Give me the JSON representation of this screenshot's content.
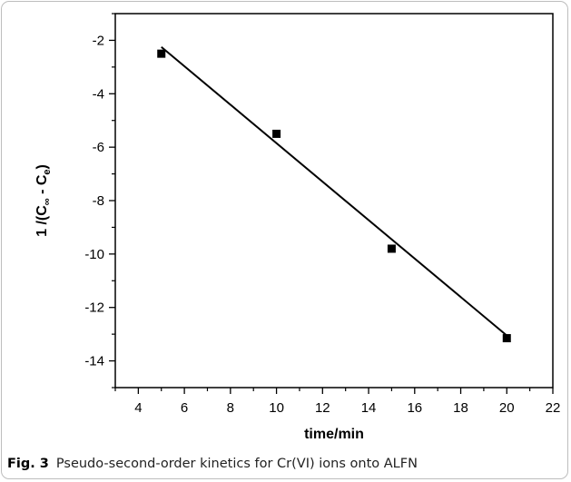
{
  "caption": {
    "label": "Fig. 3",
    "text": "Pseudo-second-order kinetics for Cr(VI) ions onto ALFN"
  },
  "chart_data": {
    "type": "scatter",
    "xlabel": "time/min",
    "ylabel": {
      "main": "1 /(C",
      "sub1": "∞",
      "mid": " - C",
      "sub2": "e",
      "end": ")"
    },
    "xlim": [
      3,
      22
    ],
    "ylim": [
      -15,
      -1
    ],
    "x_ticks": [
      4,
      6,
      8,
      10,
      12,
      14,
      16,
      18,
      20,
      22
    ],
    "y_ticks": [
      -14,
      -12,
      -10,
      -8,
      -6,
      -4,
      -2
    ],
    "points": [
      {
        "x": 5,
        "y": -2.5
      },
      {
        "x": 10,
        "y": -5.5
      },
      {
        "x": 15,
        "y": -9.8
      },
      {
        "x": 20,
        "y": -13.15
      }
    ],
    "fit_line": {
      "x": [
        5,
        20
      ],
      "y": [
        -2.25,
        -13.05
      ]
    },
    "grid": false,
    "colors": {
      "marker": "#000000",
      "line": "#000000"
    }
  }
}
